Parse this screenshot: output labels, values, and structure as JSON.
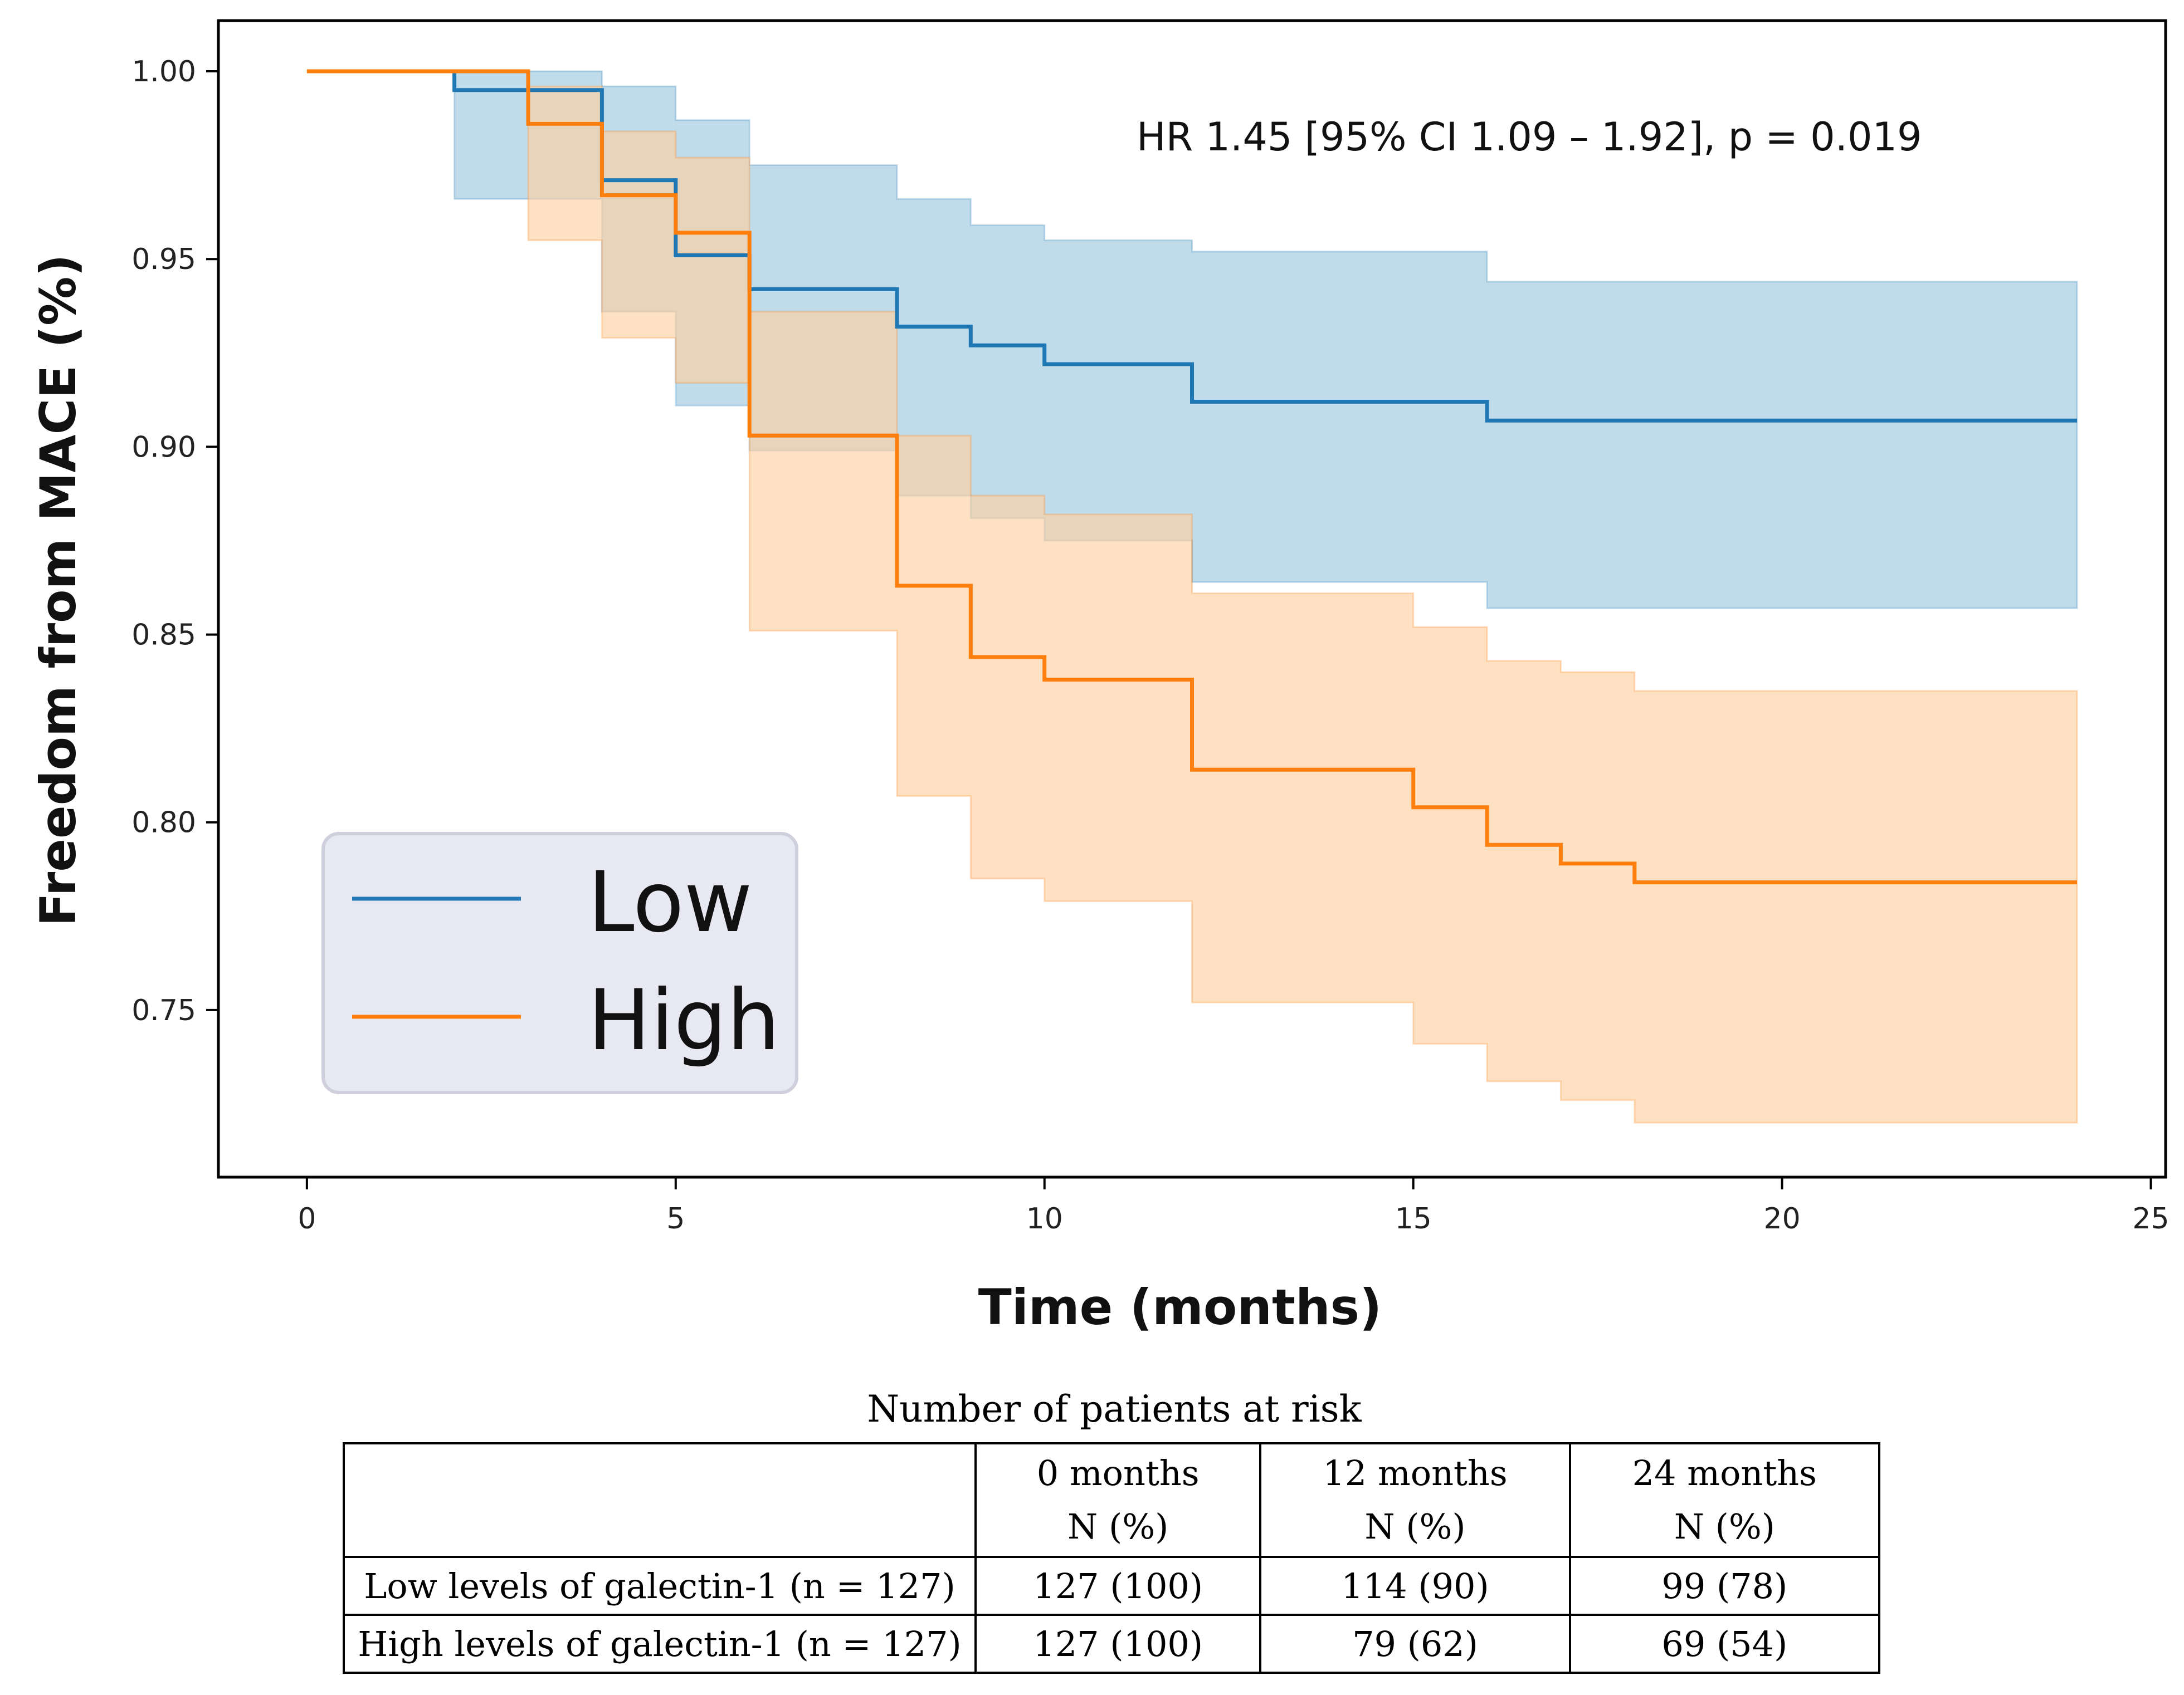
{
  "chart_data": {
    "type": "line",
    "subtype": "kaplan-meier step curves with 95% confidence bands",
    "annotation": "HR 1.45 [95% CI 1.09 – 1.92], p = 0.019",
    "xlabel": "Time (months)",
    "ylabel": "Freedom from MACE (%)",
    "xlim": [
      -1.2,
      25.2
    ],
    "ylim": [
      0.7055,
      1.0135
    ],
    "xticks": [
      0,
      5,
      10,
      15,
      20,
      25
    ],
    "xtick_labels": [
      "0",
      "5",
      "10",
      "15",
      "20",
      "25"
    ],
    "yticks": [
      1.0,
      0.95,
      0.9,
      0.85,
      0.8,
      0.75
    ],
    "ytick_labels": [
      "1.00",
      "0.95",
      "0.90",
      "0.85",
      "0.80",
      "0.75"
    ],
    "legend_position": "bottom-left",
    "series": [
      {
        "name": "Low",
        "color": "#1f77b4",
        "band_color": "#9ecae1",
        "times": [
          0,
          2,
          4,
          5,
          6,
          8,
          9,
          10,
          12,
          16,
          24
        ],
        "values": [
          1.0,
          0.995,
          0.971,
          0.951,
          0.942,
          0.932,
          0.927,
          0.922,
          0.912,
          0.907,
          0.907
        ],
        "ci_lower": [
          1.0,
          0.966,
          0.936,
          0.911,
          0.899,
          0.887,
          0.881,
          0.875,
          0.864,
          0.857,
          0.857
        ],
        "ci_upper": [
          1.0,
          1.0,
          0.996,
          0.987,
          0.975,
          0.966,
          0.959,
          0.955,
          0.952,
          0.944,
          0.94
        ]
      },
      {
        "name": "High",
        "color": "#ff7f0e",
        "band_color": "#fdd0a2",
        "times": [
          0,
          3,
          4,
          5,
          6,
          8,
          9,
          10,
          12,
          15,
          16,
          17,
          18,
          24
        ],
        "values": [
          1.0,
          0.986,
          0.967,
          0.957,
          0.903,
          0.863,
          0.844,
          0.838,
          0.814,
          0.804,
          0.794,
          0.789,
          0.784,
          0.784
        ],
        "ci_lower": [
          1.0,
          0.955,
          0.929,
          0.917,
          0.851,
          0.807,
          0.785,
          0.779,
          0.752,
          0.741,
          0.731,
          0.726,
          0.72,
          0.72
        ],
        "ci_upper": [
          1.0,
          0.996,
          0.984,
          0.977,
          0.936,
          0.903,
          0.887,
          0.882,
          0.861,
          0.852,
          0.843,
          0.84,
          0.835,
          0.835
        ]
      }
    ]
  },
  "risk_table": {
    "title": "Number of patients at risk",
    "columns": [
      {
        "label": "0 months",
        "sub": "N (%)"
      },
      {
        "label": "12 months",
        "sub": "N (%)"
      },
      {
        "label": "24 months",
        "sub": "N (%)"
      }
    ],
    "rows": [
      {
        "label": "Low levels of galectin-1 (n = 127)",
        "cells": [
          "127 (100)",
          "114 (90)",
          "99 (78)"
        ]
      },
      {
        "label": "High levels of galectin-1 (n = 127)",
        "cells": [
          "127 (100)",
          "79 (62)",
          "69 (54)"
        ]
      }
    ]
  }
}
